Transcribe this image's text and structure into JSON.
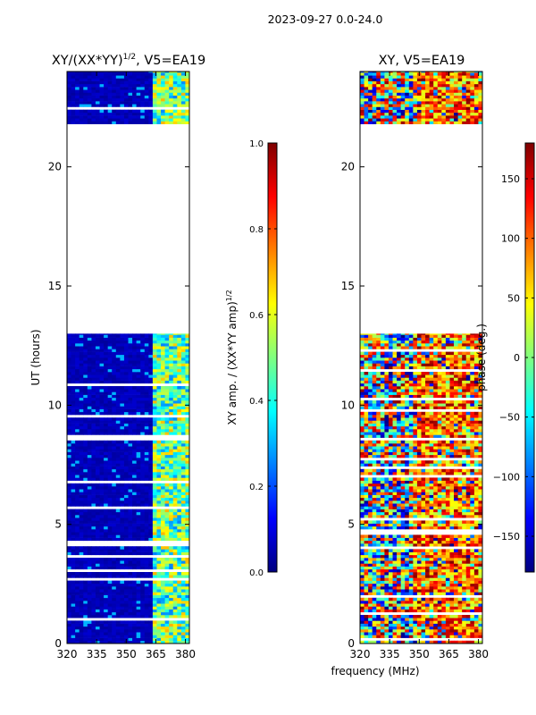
{
  "figure_title": "2023-09-27 0.0-24.0",
  "shared_xlabel": "frequency (MHz)",
  "chart_data": [
    {
      "type": "heatmap",
      "title": "XY/(XX*YY)",
      "title_exponent": "1/2",
      "title_suffix": ", V5=EA19",
      "xlabel": "",
      "ylabel": "UT (hours)",
      "xlim": [
        320,
        382
      ],
      "ylim": [
        0,
        24
      ],
      "xticks": [
        320,
        335,
        350,
        365,
        380
      ],
      "yticks": [
        0,
        5,
        10,
        15,
        20
      ],
      "data_blocks_ut": [
        [
          0,
          13
        ],
        [
          21.8,
          24
        ]
      ],
      "colorbar": {
        "label": "XY amp. / (XX*YY amp)",
        "label_exponent": "1/2",
        "range": [
          0.0,
          1.0
        ],
        "ticks": [
          "0.0",
          "0.2",
          "0.4",
          "0.6",
          "0.8",
          "1.0"
        ],
        "colormap": "jet"
      }
    },
    {
      "type": "heatmap",
      "title": "XY, V5=EA19",
      "xlabel": "",
      "ylabel": "",
      "xlim": [
        320,
        382
      ],
      "ylim": [
        0,
        24
      ],
      "xticks": [
        320,
        335,
        350,
        365,
        380
      ],
      "yticks": [
        0,
        5,
        10,
        15,
        20
      ],
      "data_blocks_ut": [
        [
          0,
          13
        ],
        [
          21.8,
          24
        ]
      ],
      "colorbar": {
        "label": "phase (deg.)",
        "range": [
          -180,
          180
        ],
        "ticks": [
          "−150",
          "−100",
          "−50",
          "0",
          "50",
          "100",
          "150"
        ],
        "colormap": "jet"
      }
    }
  ]
}
